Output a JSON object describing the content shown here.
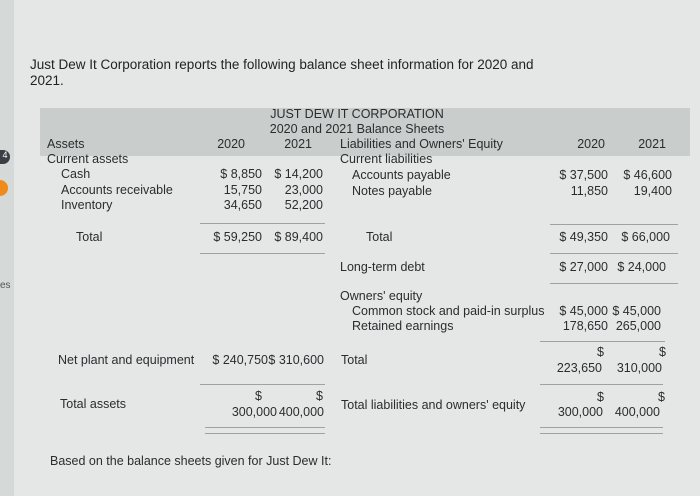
{
  "intro": "Just Dew It Corporation reports the following balance sheet information for 2020 and 2021.",
  "sidebar": {
    "badge": "4",
    "fragment": "es",
    "accent": "#f08a1a"
  },
  "title": "JUST DEW IT CORPORATION",
  "subtitle": "2020 and 2021 Balance Sheets",
  "assets": {
    "header": "Assets",
    "y2020": "2020",
    "y2021": "2021",
    "current_assets": "Current assets",
    "rows": [
      {
        "label": "Cash",
        "v2020": "$ 8,850",
        "v2021": "$ 14,200"
      },
      {
        "label": "Accounts receivable",
        "v2020": "15,750",
        "v2021": "23,000"
      },
      {
        "label": "Inventory",
        "v2020": "34,650",
        "v2021": "52,200"
      }
    ],
    "total": {
      "label": "Total",
      "v2020": "$ 59,250",
      "v2021": "$ 89,400"
    },
    "net_plant": {
      "label": "Net plant and equipment",
      "v2020": "$ 240,750",
      "v2021": "$ 310,600"
    },
    "total_assets": {
      "label": "Total assets",
      "cur": "$",
      "v2020": "300,000",
      "v2021": "400,000"
    }
  },
  "liabilities": {
    "header": "Liabilities and Owners' Equity",
    "y2020": "2020",
    "y2021": "2021",
    "current_liabilities": "Current liabilities",
    "rows": [
      {
        "label": "Accounts payable",
        "v2020": "$ 37,500",
        "v2021": "$ 46,600"
      },
      {
        "label": "Notes payable",
        "v2020": "11,850",
        "v2021": "19,400"
      }
    ],
    "total": {
      "label": "Total",
      "v2020": "$ 49,350",
      "v2021": "$ 66,000"
    },
    "long_term_debt": {
      "label": "Long-term debt",
      "v2020": "$ 27,000",
      "v2021": "$ 24,000"
    },
    "owners_equity": "Owners' equity",
    "equity_rows": [
      {
        "label": "Common stock and paid-in surplus",
        "v2020": "$ 45,000",
        "v2021": "$ 45,000"
      },
      {
        "label": "Retained earnings",
        "v2020": "178,650",
        "v2021": "265,000"
      }
    ],
    "equity_total": {
      "label": "Total",
      "cur": "$",
      "v2020": "223,650",
      "v2021": "310,000"
    },
    "total_le": {
      "label": "Total liabilities and owners' equity",
      "cur": "$",
      "v2020": "300,000",
      "v2021": "400,000"
    }
  },
  "footer": "Based on the balance sheets given for Just Dew It:"
}
